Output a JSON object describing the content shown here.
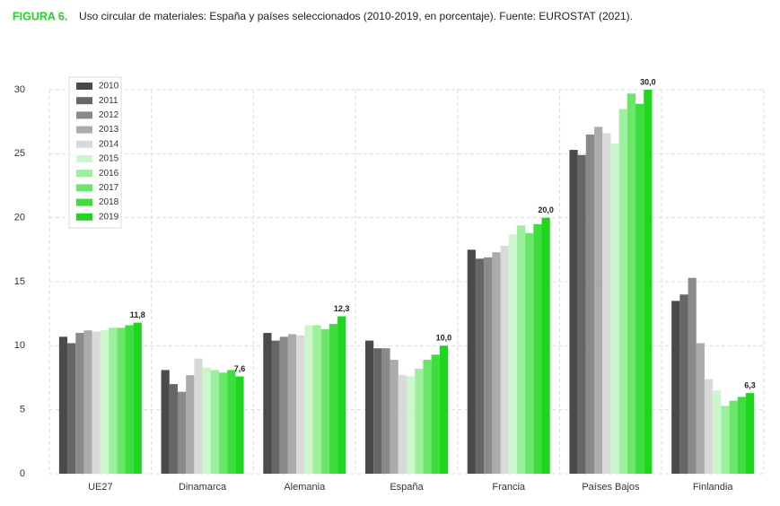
{
  "chart_data": {
    "type": "bar",
    "title_label": "FIGURA 6.",
    "title": "Uso circular de materiales: España y países seleccionados (2010-2019, en porcentaje). Fuente: EUROSTAT (2021).",
    "categories": [
      "UE27",
      "Dinamarca",
      "Alemania",
      "España",
      "Francia",
      "Países Bajos",
      "Finlandia"
    ],
    "series": [
      {
        "name": "2010",
        "color": "#4a4a4a",
        "values": [
          10.7,
          8.1,
          11.0,
          10.4,
          17.5,
          25.3,
          13.5
        ]
      },
      {
        "name": "2011",
        "color": "#666666",
        "values": [
          10.2,
          7.0,
          10.4,
          9.8,
          16.8,
          24.9,
          14.0
        ]
      },
      {
        "name": "2012",
        "color": "#8a8a8a",
        "values": [
          11.0,
          6.4,
          10.7,
          9.8,
          16.9,
          26.5,
          15.3
        ]
      },
      {
        "name": "2013",
        "color": "#ababab",
        "values": [
          11.2,
          7.7,
          10.9,
          8.9,
          17.3,
          27.1,
          10.2
        ]
      },
      {
        "name": "2014",
        "color": "#d9d9d9",
        "values": [
          11.1,
          9.0,
          10.8,
          7.7,
          17.8,
          26.6,
          7.4
        ]
      },
      {
        "name": "2015",
        "color": "#ccf7cc",
        "values": [
          11.2,
          8.3,
          11.6,
          7.6,
          18.7,
          25.8,
          6.5
        ]
      },
      {
        "name": "2016",
        "color": "#9cef9c",
        "values": [
          11.4,
          8.1,
          11.6,
          8.2,
          19.4,
          28.5,
          5.3
        ]
      },
      {
        "name": "2017",
        "color": "#6ae66a",
        "values": [
          11.4,
          7.9,
          11.3,
          8.9,
          18.8,
          29.7,
          5.7
        ]
      },
      {
        "name": "2018",
        "color": "#3ddd3d",
        "values": [
          11.6,
          8.1,
          11.7,
          9.3,
          19.5,
          28.9,
          6.0
        ]
      },
      {
        "name": "2019",
        "color": "#1fd61f",
        "values": [
          11.8,
          7.6,
          12.3,
          10.0,
          20.0,
          30.0,
          6.3
        ],
        "value_labels": [
          "11,8",
          "7,6",
          "12,3",
          "10,0",
          "20,0",
          "30,0",
          "6,3"
        ]
      }
    ],
    "ylim": [
      0,
      30
    ],
    "yticks": [
      0,
      5,
      10,
      15,
      20,
      25,
      30
    ],
    "grid": true,
    "legend": "top-left"
  }
}
